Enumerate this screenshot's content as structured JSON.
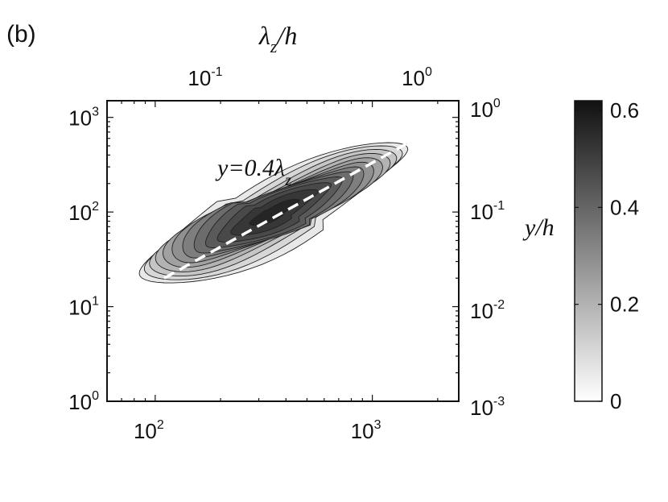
{
  "panel_label": "(b)",
  "chart_data": {
    "type": "heatmap",
    "subtype": "filled-contour",
    "colormap": "gray-reversed",
    "scale": {
      "x": "log",
      "y": "log"
    },
    "x_axis": {
      "lim": [
        60,
        2500
      ],
      "ticks": [
        {
          "value": 100,
          "base": "10",
          "exp": "2"
        },
        {
          "value": 1000,
          "base": "10",
          "exp": "3"
        }
      ]
    },
    "y_axis": {
      "lim": [
        1,
        1500
      ],
      "ticks": [
        {
          "value": 1,
          "base": "10",
          "exp": "0"
        },
        {
          "value": 10,
          "base": "10",
          "exp": "1"
        },
        {
          "value": 100,
          "base": "10",
          "exp": "2"
        },
        {
          "value": 1000,
          "base": "10",
          "exp": "3"
        }
      ]
    },
    "top_axis": {
      "label_main": "λ",
      "label_sub": "z",
      "label_tail": "/h",
      "ticks": [
        {
          "value": 0.1,
          "base": "10",
          "exp": "-1"
        },
        {
          "value": 1,
          "base": "10",
          "exp": "0"
        }
      ]
    },
    "right_axis": {
      "label": "y/h",
      "ticks": [
        {
          "value": 1,
          "base": "10",
          "exp": "0"
        },
        {
          "value": 0.1,
          "base": "10",
          "exp": "-1"
        },
        {
          "value": 0.01,
          "base": "10",
          "exp": "-2"
        },
        {
          "value": 0.001,
          "base": "10",
          "exp": "-3"
        }
      ]
    },
    "annotation": {
      "text_main": "y=0.4λ",
      "text_sub": "z",
      "line_x": [
        110,
        2000
      ],
      "line_y": [
        20,
        800
      ]
    },
    "colorbar": {
      "range": [
        0,
        0.62
      ],
      "ticks": [
        {
          "value": 0,
          "label": "0"
        },
        {
          "value": 0.2,
          "label": "0.2"
        },
        {
          "value": 0.4,
          "label": "0.4"
        },
        {
          "value": 0.6,
          "label": "0.6"
        }
      ]
    },
    "peak": {
      "value": 0.62
    },
    "contour_levels": [
      0.05,
      0.1,
      0.15,
      0.2,
      0.25,
      0.3,
      0.35,
      0.4,
      0.45,
      0.5,
      0.55,
      0.6
    ]
  }
}
